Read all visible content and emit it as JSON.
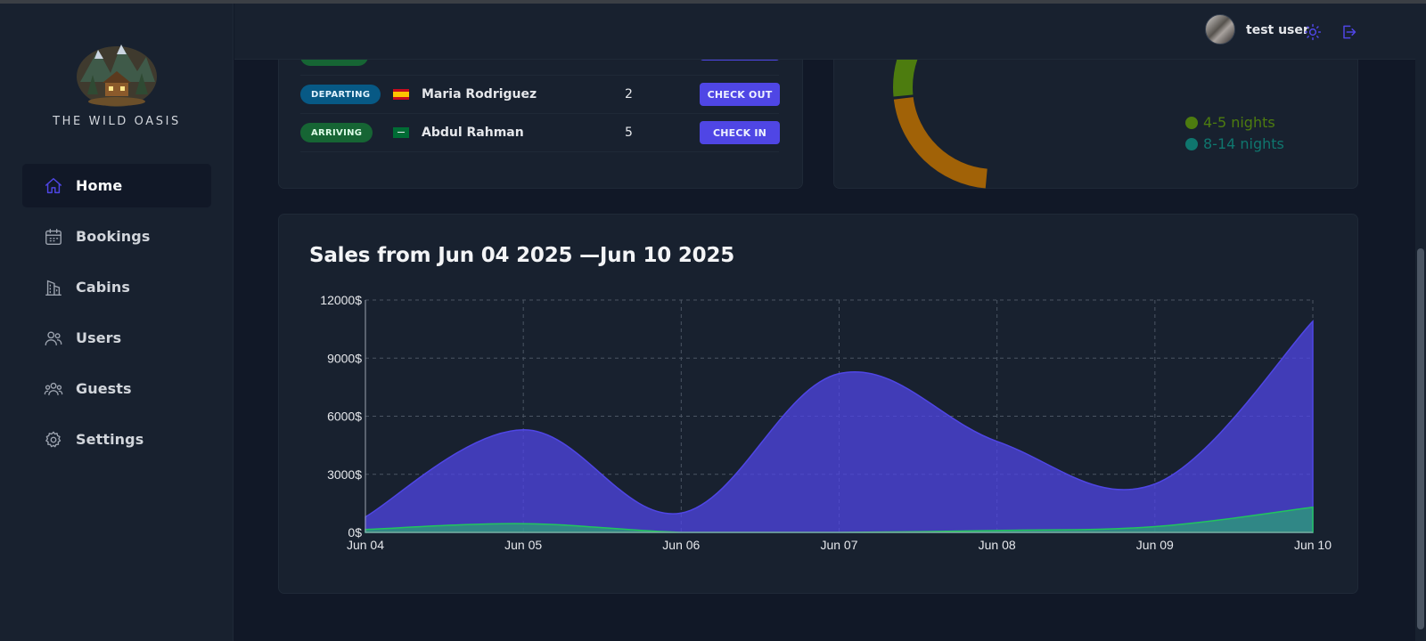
{
  "app": {
    "brand": "THE WILD OASIS"
  },
  "sidebar": {
    "items": [
      {
        "label": "Home",
        "icon": "home-icon",
        "active": true
      },
      {
        "label": "Bookings",
        "icon": "calendar-icon"
      },
      {
        "label": "Cabins",
        "icon": "building-icon"
      },
      {
        "label": "Users",
        "icon": "users-icon"
      },
      {
        "label": "Guests",
        "icon": "user-group-icon"
      },
      {
        "label": "Settings",
        "icon": "gear-icon"
      }
    ]
  },
  "header": {
    "username": "test user",
    "icons": [
      "sun-icon",
      "logout-icon"
    ],
    "accent": "#4f46e5"
  },
  "today_activity": {
    "rows": [
      {
        "status": "DEPARTING",
        "flag": "spain-flag",
        "guest": "Maria Rodriguez",
        "nights": "2",
        "action": "CHECK OUT"
      },
      {
        "status": "ARRIVING",
        "flag": "saudi-arabia-flag",
        "guest": "Abdul Rahman",
        "nights": "5",
        "action": "CHECK IN"
      }
    ]
  },
  "durations": {
    "legend": [
      {
        "label": "4-5 nights",
        "color": "#4d7c0f"
      },
      {
        "label": "8-14 nights",
        "color": "#0f766e"
      }
    ],
    "ring_colors": [
      "#a16207",
      "#4d7c0f",
      "#0f766e"
    ]
  },
  "sales": {
    "title": "Sales from Jun 04 2025 —Jun 10 2025",
    "colors": {
      "total": "#4f46e5",
      "extras": "#22c55e"
    }
  },
  "chart_data": {
    "type": "area",
    "categories": [
      "Jun 04",
      "Jun 05",
      "Jun 06",
      "Jun 07",
      "Jun 08",
      "Jun 09",
      "Jun 10"
    ],
    "series": [
      {
        "values": [
          800,
          5300,
          1000,
          8200,
          4700,
          2500,
          10900
        ]
      },
      {
        "values": [
          150,
          450,
          0,
          0,
          100,
          300,
          1300
        ]
      }
    ],
    "yticks": [
      "0$",
      "3000$",
      "6000$",
      "9000$",
      "12000$"
    ],
    "ylim": [
      0,
      12000
    ],
    "grid": true
  }
}
